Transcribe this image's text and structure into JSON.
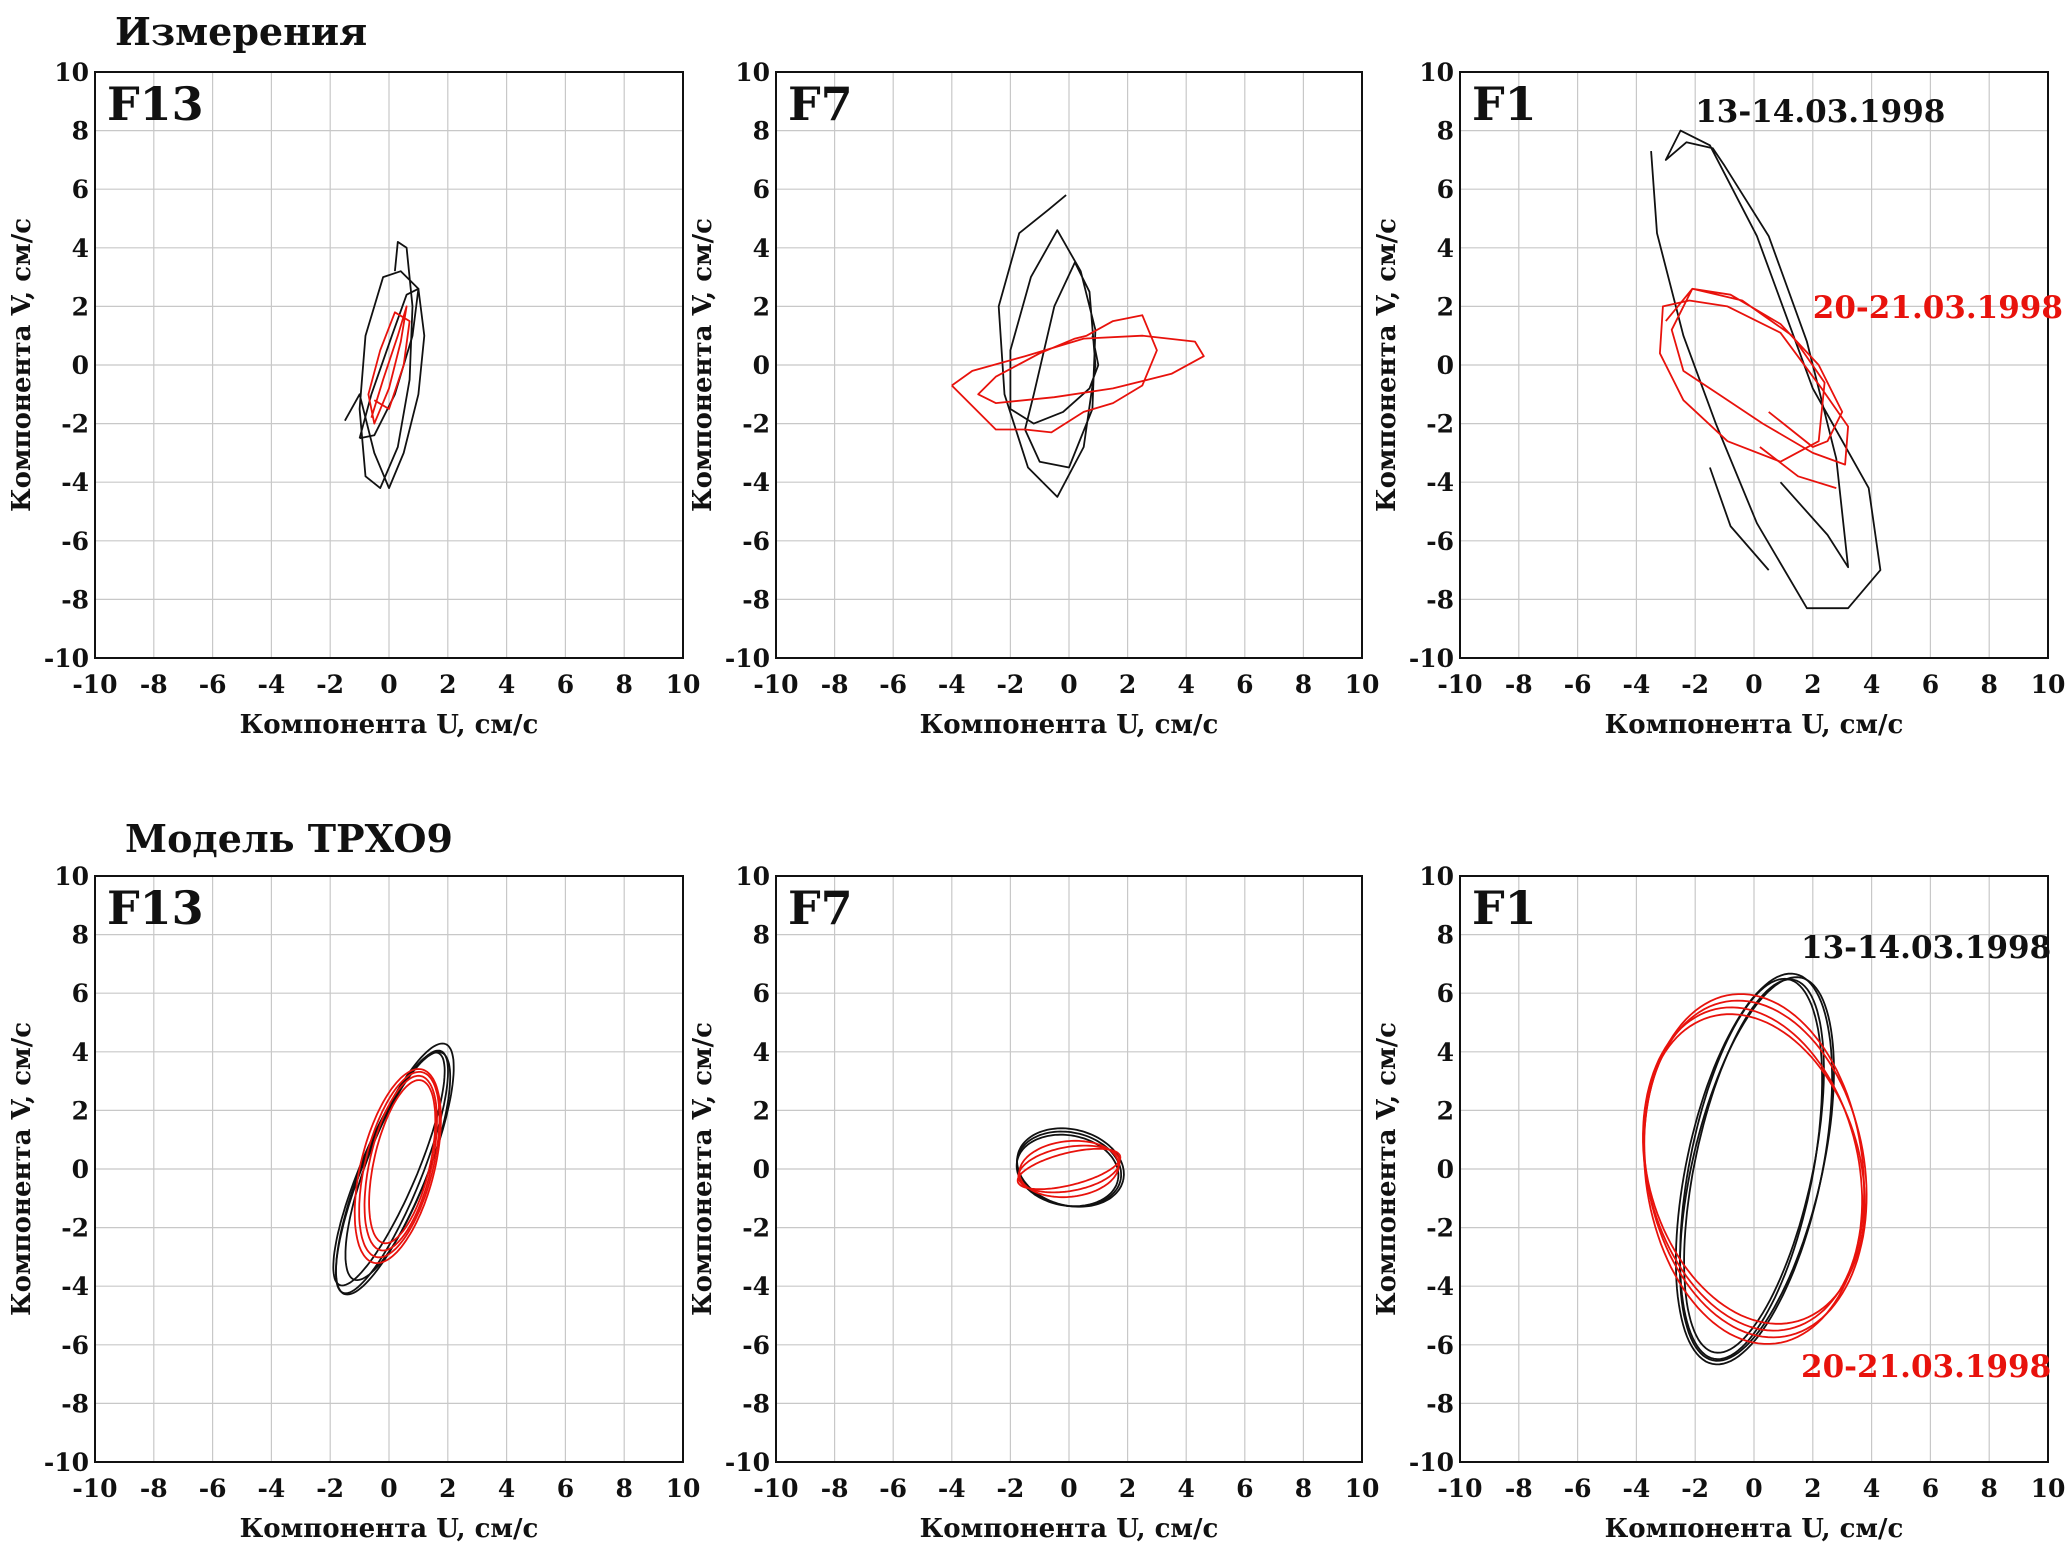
{
  "figure": {
    "section_titles": [
      "Измерения",
      "Модель TPXO9"
    ]
  },
  "colors": {
    "black_series": "#111111",
    "red_series": "#e8120c",
    "grid": "#c8c8c8"
  },
  "chart_data": [
    {
      "type": "line",
      "panel": "F13",
      "section": "Измерения",
      "xlabel": "Компонента U, см/с",
      "ylabel": "Компонента V, см/с",
      "xlim": [
        -10,
        10
      ],
      "ylim": [
        -10,
        10
      ],
      "xticks": [
        -10,
        -8,
        -6,
        -4,
        -2,
        0,
        2,
        4,
        6,
        8,
        10
      ],
      "yticks": [
        -10,
        -8,
        -6,
        -4,
        -2,
        0,
        2,
        4,
        6,
        8,
        10
      ],
      "grid": true,
      "annotations": [],
      "series": [
        {
          "color": "black",
          "x": [
            0.2,
            0.3,
            0.6,
            0.8,
            0.7,
            0.3,
            -0.3,
            -0.8,
            -1.0,
            -0.8,
            -0.2,
            0.4,
            1.0,
            1.2,
            1.0,
            0.5,
            0.0,
            -0.5,
            -1.0,
            -1.5
          ],
          "y": [
            3.2,
            4.2,
            4.0,
            2.0,
            -0.5,
            -2.8,
            -4.2,
            -3.8,
            -1.5,
            1.0,
            3.0,
            3.2,
            2.6,
            1.0,
            -1.0,
            -3.0,
            -4.2,
            -3.0,
            -1.0,
            -1.9
          ]
        },
        {
          "color": "black",
          "x": [
            -1.0,
            -0.6,
            0.1,
            0.6,
            1.0,
            0.8,
            0.2,
            -0.5,
            -1.0
          ],
          "y": [
            -2.5,
            -1.0,
            1.0,
            2.4,
            2.6,
            1.0,
            -1.0,
            -2.4,
            -2.5
          ]
        },
        {
          "color": "red",
          "x": [
            -0.6,
            -0.2,
            0.3,
            0.6,
            0.4,
            0.0,
            -0.5,
            -0.7,
            -0.3,
            0.2,
            0.7,
            0.5,
            0.0,
            -0.5
          ],
          "y": [
            -1.8,
            -0.5,
            1.0,
            2.0,
            0.8,
            -0.8,
            -2.0,
            -1.0,
            0.5,
            1.8,
            1.5,
            0.0,
            -1.5,
            -1.2
          ]
        }
      ]
    },
    {
      "type": "line",
      "panel": "F7",
      "section": "Измерения",
      "xlabel": "Компонента U, см/с",
      "ylabel": "Компонента V, см/с",
      "xlim": [
        -10,
        10
      ],
      "ylim": [
        -10,
        10
      ],
      "xticks": [
        -10,
        -8,
        -6,
        -4,
        -2,
        0,
        2,
        4,
        6,
        8,
        10
      ],
      "yticks": [
        -10,
        -8,
        -6,
        -4,
        -2,
        0,
        2,
        4,
        6,
        8,
        10
      ],
      "grid": true,
      "annotations": [],
      "series": [
        {
          "color": "black",
          "x": [
            -0.1,
            -0.7,
            -1.7,
            -2.4,
            -2.2,
            -1.4,
            -0.4,
            0.5,
            0.9,
            0.7,
            0.2,
            -0.5,
            -1.2,
            -1.5,
            -1.0,
            0.0,
            0.8,
            0.9,
            0.4,
            -0.4,
            -1.3,
            -2.0,
            -2.0,
            -1.2,
            -0.2,
            0.7,
            1.0,
            0.8
          ],
          "y": [
            5.8,
            5.3,
            4.5,
            2.0,
            -1.0,
            -3.5,
            -4.5,
            -2.8,
            0.0,
            2.5,
            3.5,
            2.0,
            -1.0,
            -2.2,
            -3.3,
            -3.5,
            -1.5,
            1.2,
            3.2,
            4.6,
            3.0,
            0.5,
            -1.5,
            -2.0,
            -1.6,
            -0.8,
            0.0,
            1.0
          ]
        },
        {
          "color": "red",
          "x": [
            -4.0,
            -3.3,
            -1.5,
            0.5,
            2.5,
            4.3,
            4.6,
            3.5,
            1.5,
            -0.5,
            -2.5,
            -3.1,
            -2.5,
            -1.0,
            0.2,
            0.6,
            1.5,
            2.5,
            3.0,
            2.5,
            1.5,
            0.5,
            -0.6,
            -1.5,
            -2.5,
            -3.3,
            -4.0
          ],
          "y": [
            -0.7,
            -0.2,
            0.3,
            0.9,
            1.0,
            0.8,
            0.3,
            -0.3,
            -0.8,
            -1.1,
            -1.3,
            -1.0,
            -0.4,
            0.4,
            0.9,
            1.0,
            1.5,
            1.7,
            0.5,
            -0.7,
            -1.3,
            -1.6,
            -2.3,
            -2.2,
            -2.2,
            -1.4,
            -0.7
          ]
        }
      ]
    },
    {
      "type": "line",
      "panel": "F1",
      "section": "Измерения",
      "xlabel": "Компонента U, см/с",
      "ylabel": "Компонента V, см/с",
      "xlim": [
        -10,
        10
      ],
      "ylim": [
        -10,
        10
      ],
      "xticks": [
        -10,
        -8,
        -6,
        -4,
        -2,
        0,
        2,
        4,
        6,
        8,
        10
      ],
      "yticks": [
        -10,
        -8,
        -6,
        -4,
        -2,
        0,
        2,
        4,
        6,
        8,
        10
      ],
      "grid": true,
      "annotations": [
        {
          "text": "13-14.03.1998",
          "color": "black",
          "x": -2.0,
          "y": 8.3
        },
        {
          "text": "20-21.03.1998",
          "color": "red",
          "x": 2.0,
          "y": 1.6
        }
      ],
      "series": [
        {
          "color": "black",
          "x": [
            -3.5,
            -3.3,
            -2.4,
            -1.3,
            0.1,
            1.8,
            3.2,
            4.3,
            3.9,
            2.0,
            0.1,
            -1.5,
            -2.5,
            -3.0,
            -2.3,
            -1.4,
            -1.0,
            0.5,
            1.8,
            2.8,
            3.2,
            2.5,
            0.9
          ],
          "y": [
            7.3,
            4.5,
            1.0,
            -2.0,
            -5.4,
            -8.3,
            -8.3,
            -7.0,
            -4.2,
            -0.8,
            4.4,
            7.5,
            8.0,
            7.0,
            7.6,
            7.4,
            6.8,
            4.4,
            0.8,
            -3.2,
            -6.9,
            -5.8,
            -4.0
          ]
        },
        {
          "color": "black",
          "x": [
            -1.5,
            -0.8,
            0.5
          ],
          "y": [
            -3.5,
            -5.5,
            -7.0
          ]
        },
        {
          "color": "red",
          "x": [
            -3.0,
            -2.1,
            -0.4,
            1.3,
            2.4,
            2.2,
            0.9,
            -0.9,
            -2.4,
            -3.2,
            -3.1,
            -2.2,
            -0.9,
            0.9,
            2.3,
            3.2,
            3.1,
            2.0,
            0.3,
            -1.2,
            -2.4,
            -2.8,
            -2.1,
            -0.8,
            0.9,
            2.2,
            3.0,
            2.5,
            2.0,
            0.5
          ],
          "y": [
            1.5,
            2.6,
            2.2,
            1.0,
            -0.6,
            -2.6,
            -3.3,
            -2.6,
            -1.2,
            0.4,
            2.0,
            2.2,
            2.0,
            1.1,
            -0.8,
            -2.1,
            -3.4,
            -3.0,
            -2.0,
            -1.0,
            -0.2,
            1.2,
            2.6,
            2.4,
            1.4,
            0.0,
            -1.6,
            -2.6,
            -2.8,
            -1.6
          ]
        },
        {
          "color": "red",
          "x": [
            2.8,
            1.5,
            0.2
          ],
          "y": [
            -4.2,
            -3.8,
            -2.8
          ]
        }
      ]
    },
    {
      "type": "line",
      "panel": "F13",
      "section": "Модель TPXO9",
      "xlabel": "Компонента U, см/с",
      "ylabel": "Компонента V, см/с",
      "xlim": [
        -10,
        10
      ],
      "ylim": [
        -10,
        10
      ],
      "xticks": [
        -10,
        -8,
        -6,
        -4,
        -2,
        0,
        2,
        4,
        6,
        8,
        10
      ],
      "yticks": [
        -10,
        -8,
        -6,
        -4,
        -2,
        0,
        2,
        4,
        6,
        8,
        10
      ],
      "grid": true,
      "annotations": [],
      "ellipses": [
        {
          "color": "black",
          "cx": 0.2,
          "cy": 0.0,
          "a": 4.6,
          "b": 1.1,
          "angle_deg": 68
        },
        {
          "color": "black",
          "cx": 0.1,
          "cy": -0.1,
          "a": 4.45,
          "b": 1.0,
          "angle_deg": 68
        },
        {
          "color": "black",
          "cx": 0.0,
          "cy": 0.0,
          "a": 4.3,
          "b": 0.95,
          "angle_deg": 67
        },
        {
          "color": "black",
          "cx": 0.3,
          "cy": 0.1,
          "a": 4.15,
          "b": 1.05,
          "angle_deg": 69
        },
        {
          "color": "red",
          "cx": 0.3,
          "cy": 0.1,
          "a": 3.4,
          "b": 1.25,
          "angle_deg": 76
        },
        {
          "color": "red",
          "cx": 0.35,
          "cy": 0.15,
          "a": 3.25,
          "b": 1.15,
          "angle_deg": 76
        },
        {
          "color": "red",
          "cx": 0.4,
          "cy": 0.2,
          "a": 3.05,
          "b": 1.05,
          "angle_deg": 77
        },
        {
          "color": "red",
          "cx": 0.45,
          "cy": 0.25,
          "a": 2.85,
          "b": 0.95,
          "angle_deg": 77
        }
      ]
    },
    {
      "type": "line",
      "panel": "F7",
      "section": "Модель TPXO9",
      "xlabel": "Компонента U, см/с",
      "ylabel": "Компонента V, см/с",
      "xlim": [
        -10,
        10
      ],
      "ylim": [
        -10,
        10
      ],
      "xticks": [
        -10,
        -8,
        -6,
        -4,
        -2,
        0,
        2,
        4,
        6,
        8,
        10
      ],
      "yticks": [
        -10,
        -8,
        -6,
        -4,
        -2,
        0,
        2,
        4,
        6,
        8,
        10
      ],
      "grid": true,
      "annotations": [],
      "ellipses": [
        {
          "color": "black",
          "cx": 0.0,
          "cy": 0.0,
          "a": 1.8,
          "b": 1.25,
          "angle_deg": -12
        },
        {
          "color": "black",
          "cx": 0.05,
          "cy": 0.05,
          "a": 1.85,
          "b": 1.3,
          "angle_deg": -14
        },
        {
          "color": "black",
          "cx": -0.05,
          "cy": -0.05,
          "a": 1.75,
          "b": 1.2,
          "angle_deg": -10
        },
        {
          "color": "red",
          "cx": 0.0,
          "cy": 0.0,
          "a": 1.8,
          "b": 0.55,
          "angle_deg": 14
        },
        {
          "color": "red",
          "cx": 0.0,
          "cy": 0.0,
          "a": 1.75,
          "b": 0.75,
          "angle_deg": 10
        },
        {
          "color": "red",
          "cx": 0.0,
          "cy": 0.0,
          "a": 1.7,
          "b": 0.95,
          "angle_deg": 6
        }
      ]
    },
    {
      "type": "line",
      "panel": "F1",
      "section": "Модель TPXO9",
      "xlabel": "Компонента U, см/с",
      "ylabel": "Компонента V, см/с",
      "xlim": [
        -10,
        10
      ],
      "ylim": [
        -10,
        10
      ],
      "xticks": [
        -10,
        -8,
        -6,
        -4,
        -2,
        0,
        2,
        4,
        6,
        8,
        10
      ],
      "yticks": [
        -10,
        -8,
        -6,
        -4,
        -2,
        0,
        2,
        4,
        6,
        8,
        10
      ],
      "grid": true,
      "annotations": [
        {
          "text": "13-14.03.1998",
          "color": "black",
          "x": 1.6,
          "y": 7.2
        },
        {
          "text": "20-21.03.1998",
          "color": "red",
          "x": 1.6,
          "y": -7.1
        }
      ],
      "ellipses": [
        {
          "color": "black",
          "cx": 0.0,
          "cy": 0.0,
          "a": 6.8,
          "b": 2.3,
          "angle_deg": 78
        },
        {
          "color": "black",
          "cx": 0.1,
          "cy": 0.0,
          "a": 6.7,
          "b": 2.2,
          "angle_deg": 77
        },
        {
          "color": "black",
          "cx": -0.1,
          "cy": 0.0,
          "a": 6.6,
          "b": 2.1,
          "angle_deg": 79
        },
        {
          "color": "black",
          "cx": 0.0,
          "cy": 0.1,
          "a": 6.5,
          "b": 2.0,
          "angle_deg": 78
        },
        {
          "color": "red",
          "cx": 0.0,
          "cy": 0.0,
          "a": 6.0,
          "b": 3.7,
          "angle_deg": -83
        },
        {
          "color": "red",
          "cx": 0.05,
          "cy": 0.0,
          "a": 5.8,
          "b": 3.7,
          "angle_deg": -80
        },
        {
          "color": "red",
          "cx": -0.05,
          "cy": 0.0,
          "a": 5.6,
          "b": 3.6,
          "angle_deg": -77
        },
        {
          "color": "red",
          "cx": 0.0,
          "cy": 0.0,
          "a": 5.4,
          "b": 3.6,
          "angle_deg": -74
        }
      ]
    }
  ]
}
